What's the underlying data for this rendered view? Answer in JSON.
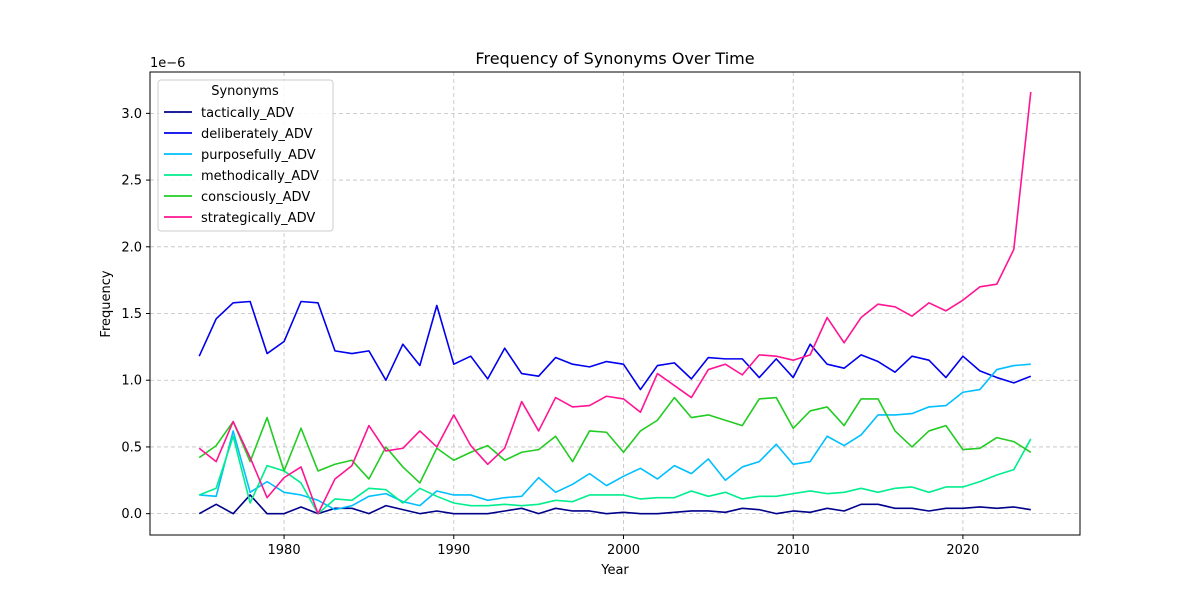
{
  "chart_data": {
    "type": "line",
    "title": "Frequency of Synonyms Over Time",
    "xlabel": "Year",
    "ylabel": "Frequency",
    "offset_label": "1e−6",
    "scale": 1e-06,
    "xlim": [
      1972.1,
      2026.9
    ],
    "ylim": [
      -0.16,
      3.31
    ],
    "xticks": [
      1980,
      1990,
      2000,
      2010,
      2020
    ],
    "yticks": [
      0.0,
      0.5,
      1.0,
      1.5,
      2.0,
      2.5,
      3.0
    ],
    "ytick_labels": [
      "0.0",
      "0.5",
      "1.0",
      "1.5",
      "2.0",
      "2.5",
      "3.0"
    ],
    "grid": true,
    "legend": {
      "title": "Synonyms",
      "position": "top-left"
    },
    "x": [
      1975,
      1976,
      1977,
      1978,
      1979,
      1980,
      1981,
      1982,
      1983,
      1984,
      1985,
      1986,
      1987,
      1988,
      1989,
      1990,
      1991,
      1992,
      1993,
      1994,
      1995,
      1996,
      1997,
      1998,
      1999,
      2000,
      2001,
      2002,
      2003,
      2004,
      2005,
      2006,
      2007,
      2008,
      2009,
      2010,
      2011,
      2012,
      2013,
      2014,
      2015,
      2016,
      2017,
      2018,
      2019,
      2020,
      2021,
      2022,
      2023,
      2024
    ],
    "series": [
      {
        "name": "tactically_ADV",
        "color": "#00008b",
        "values": [
          0.0,
          0.07,
          0.0,
          0.14,
          0.0,
          0.0,
          0.05,
          0.0,
          0.04,
          0.04,
          0.0,
          0.06,
          0.03,
          0.0,
          0.02,
          0.0,
          0.0,
          0.0,
          0.02,
          0.04,
          0.0,
          0.04,
          0.02,
          0.02,
          0.0,
          0.01,
          0.0,
          0.0,
          0.01,
          0.02,
          0.02,
          0.01,
          0.04,
          0.03,
          0.0,
          0.02,
          0.01,
          0.04,
          0.02,
          0.07,
          0.07,
          0.04,
          0.04,
          0.02,
          0.04,
          0.04,
          0.05,
          0.04,
          0.05,
          0.03
        ]
      },
      {
        "name": "deliberately_ADV",
        "color": "#0000ee",
        "values": [
          1.18,
          1.46,
          1.58,
          1.59,
          1.2,
          1.29,
          1.59,
          1.58,
          1.22,
          1.2,
          1.22,
          1.0,
          1.27,
          1.11,
          1.56,
          1.12,
          1.18,
          1.01,
          1.24,
          1.05,
          1.03,
          1.17,
          1.12,
          1.1,
          1.14,
          1.12,
          0.93,
          1.11,
          1.13,
          1.01,
          1.17,
          1.16,
          1.16,
          1.02,
          1.16,
          1.02,
          1.27,
          1.12,
          1.09,
          1.19,
          1.14,
          1.06,
          1.18,
          1.15,
          1.02,
          1.18,
          1.07,
          1.02,
          0.98,
          1.03
        ]
      },
      {
        "name": "purposefully_ADV",
        "color": "#00bfff",
        "values": [
          0.14,
          0.13,
          0.62,
          0.16,
          0.24,
          0.16,
          0.14,
          0.1,
          0.03,
          0.06,
          0.13,
          0.15,
          0.09,
          0.06,
          0.17,
          0.14,
          0.14,
          0.1,
          0.12,
          0.13,
          0.27,
          0.16,
          0.22,
          0.3,
          0.21,
          0.28,
          0.34,
          0.26,
          0.36,
          0.3,
          0.41,
          0.25,
          0.35,
          0.39,
          0.52,
          0.37,
          0.39,
          0.58,
          0.51,
          0.59,
          0.74,
          0.74,
          0.75,
          0.8,
          0.81,
          0.91,
          0.93,
          1.08,
          1.11,
          1.12
        ]
      },
      {
        "name": "methodically_ADV",
        "color": "#00ee8e",
        "values": [
          0.14,
          0.19,
          0.58,
          0.08,
          0.36,
          0.32,
          0.23,
          0.0,
          0.11,
          0.1,
          0.19,
          0.18,
          0.08,
          0.19,
          0.13,
          0.08,
          0.06,
          0.06,
          0.07,
          0.06,
          0.07,
          0.1,
          0.09,
          0.14,
          0.14,
          0.14,
          0.11,
          0.12,
          0.12,
          0.17,
          0.13,
          0.16,
          0.11,
          0.13,
          0.13,
          0.15,
          0.17,
          0.15,
          0.16,
          0.19,
          0.16,
          0.19,
          0.2,
          0.16,
          0.2,
          0.2,
          0.24,
          0.29,
          0.33,
          0.56
        ]
      },
      {
        "name": "consciously_ADV",
        "color": "#22cc22",
        "values": [
          0.42,
          0.51,
          0.69,
          0.39,
          0.72,
          0.32,
          0.64,
          0.32,
          0.37,
          0.4,
          0.26,
          0.5,
          0.35,
          0.23,
          0.49,
          0.4,
          0.46,
          0.51,
          0.4,
          0.46,
          0.48,
          0.58,
          0.39,
          0.62,
          0.61,
          0.46,
          0.62,
          0.7,
          0.87,
          0.72,
          0.74,
          0.7,
          0.66,
          0.86,
          0.87,
          0.64,
          0.77,
          0.8,
          0.66,
          0.86,
          0.86,
          0.62,
          0.5,
          0.62,
          0.66,
          0.48,
          0.49,
          0.57,
          0.54,
          0.46
        ]
      },
      {
        "name": "strategically_ADV",
        "color": "#ff1493",
        "values": [
          0.49,
          0.39,
          0.69,
          0.42,
          0.12,
          0.27,
          0.35,
          0.0,
          0.26,
          0.36,
          0.66,
          0.47,
          0.49,
          0.62,
          0.5,
          0.74,
          0.51,
          0.37,
          0.49,
          0.84,
          0.62,
          0.87,
          0.8,
          0.81,
          0.88,
          0.86,
          0.76,
          1.05,
          0.96,
          0.87,
          1.08,
          1.12,
          1.04,
          1.19,
          1.18,
          1.15,
          1.19,
          1.47,
          1.28,
          1.47,
          1.57,
          1.55,
          1.48,
          1.58,
          1.52,
          1.6,
          1.7,
          1.72,
          1.98,
          3.16
        ]
      }
    ]
  }
}
